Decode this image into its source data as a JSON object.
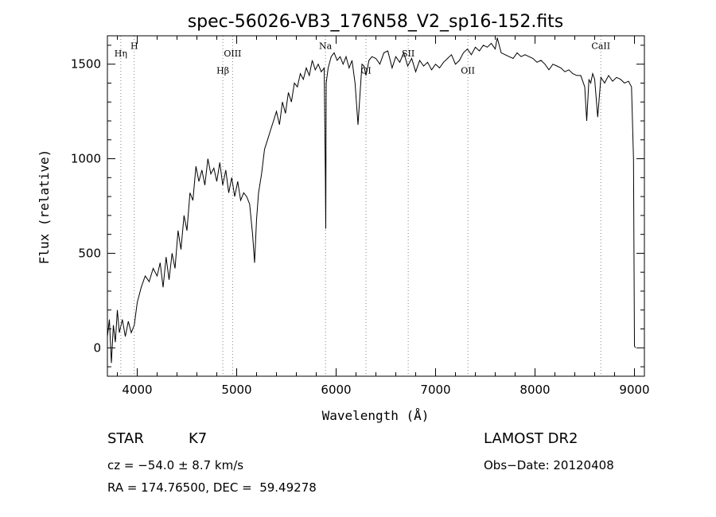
{
  "chart_data": {
    "type": "line",
    "title": "spec-56026-VB3_176N58_V2_sp16-152.fits",
    "xlabel": "Wavelength (Å)",
    "ylabel": "Flux (relative)",
    "xlim": [
      3700,
      9100
    ],
    "ylim": [
      -150,
      1650
    ],
    "x_ticks": [
      4000,
      5000,
      6000,
      7000,
      8000,
      9000
    ],
    "y_ticks": [
      0,
      500,
      1000,
      1500
    ],
    "grid": false,
    "series": [
      {
        "x": [
          3700,
          3720,
          3740,
          3760,
          3780,
          3800,
          3820,
          3850,
          3880,
          3910,
          3940,
          3970,
          4000,
          4040,
          4080,
          4120,
          4160,
          4200,
          4230,
          4260,
          4290,
          4320,
          4350,
          4380,
          4410,
          4440,
          4470,
          4500,
          4530,
          4560,
          4590,
          4620,
          4650,
          4680,
          4710,
          4740,
          4770,
          4800,
          4830,
          4860,
          4890,
          4920,
          4950,
          4980,
          5010,
          5040,
          5070,
          5100,
          5130,
          5160,
          5180,
          5200,
          5220,
          5250,
          5280,
          5310,
          5340,
          5370,
          5400,
          5430,
          5460,
          5490,
          5520,
          5550,
          5580,
          5610,
          5640,
          5670,
          5700,
          5730,
          5760,
          5790,
          5820,
          5850,
          5880,
          5892,
          5896,
          5900,
          5920,
          5950,
          5980,
          6010,
          6040,
          6070,
          6100,
          6130,
          6160,
          6190,
          6220,
          6260,
          6280,
          6300,
          6330,
          6360,
          6400,
          6440,
          6480,
          6520,
          6563,
          6600,
          6640,
          6680,
          6720,
          6760,
          6800,
          6840,
          6880,
          6920,
          6960,
          7000,
          7040,
          7080,
          7120,
          7160,
          7200,
          7240,
          7280,
          7320,
          7360,
          7400,
          7440,
          7480,
          7520,
          7560,
          7600,
          7620,
          7640,
          7660,
          7700,
          7740,
          7780,
          7820,
          7860,
          7900,
          7940,
          7980,
          8020,
          8060,
          8100,
          8140,
          8180,
          8220,
          8260,
          8300,
          8340,
          8380,
          8420,
          8460,
          8500,
          8520,
          8542,
          8560,
          8580,
          8600,
          8630,
          8662,
          8700,
          8740,
          8780,
          8820,
          8860,
          8900,
          8940,
          8970,
          8990,
          9000,
          9010
        ],
        "y": [
          60,
          150,
          -80,
          120,
          30,
          200,
          80,
          150,
          60,
          140,
          80,
          120,
          240,
          320,
          380,
          350,
          420,
          380,
          450,
          320,
          480,
          360,
          500,
          420,
          620,
          520,
          700,
          620,
          820,
          780,
          960,
          880,
          940,
          860,
          1000,
          920,
          950,
          880,
          980,
          860,
          940,
          820,
          900,
          800,
          880,
          780,
          820,
          800,
          760,
          600,
          450,
          680,
          820,
          920,
          1050,
          1100,
          1150,
          1200,
          1250,
          1180,
          1300,
          1240,
          1350,
          1300,
          1400,
          1380,
          1450,
          1420,
          1480,
          1440,
          1520,
          1470,
          1500,
          1460,
          1480,
          900,
          630,
          1400,
          1480,
          1540,
          1560,
          1520,
          1540,
          1500,
          1540,
          1480,
          1520,
          1400,
          1180,
          1500,
          1490,
          1440,
          1520,
          1540,
          1530,
          1500,
          1560,
          1570,
          1480,
          1540,
          1510,
          1560,
          1490,
          1530,
          1460,
          1520,
          1490,
          1510,
          1470,
          1500,
          1480,
          1510,
          1530,
          1550,
          1500,
          1520,
          1560,
          1580,
          1550,
          1590,
          1570,
          1600,
          1590,
          1610,
          1580,
          1640,
          1600,
          1560,
          1550,
          1540,
          1530,
          1560,
          1540,
          1550,
          1540,
          1530,
          1510,
          1520,
          1500,
          1470,
          1500,
          1490,
          1480,
          1460,
          1470,
          1450,
          1440,
          1440,
          1380,
          1200,
          1420,
          1400,
          1450,
          1420,
          1220,
          1430,
          1400,
          1440,
          1410,
          1430,
          1420,
          1400,
          1410,
          1380,
          1000,
          10,
          0
        ]
      }
    ],
    "line_markers": [
      {
        "label": "Hη",
        "x": 3835,
        "color": "#808080",
        "label_y": 1540
      },
      {
        "label": "H",
        "x": 3970,
        "color": "#808080",
        "label_y": 1580
      },
      {
        "label": "Hβ",
        "x": 4861,
        "color": "#808080",
        "label_y": 1450
      },
      {
        "label": "OIII",
        "x": 4959,
        "color": "#808080",
        "label_y": 1540
      },
      {
        "label": "Na",
        "x": 5893,
        "color": "#808080",
        "label_y": 1580
      },
      {
        "label": "OI",
        "x": 6300,
        "color": "#808080",
        "label_y": 1450
      },
      {
        "label": "SII",
        "x": 6725,
        "color": "#808080",
        "label_y": 1540
      },
      {
        "label": "OII",
        "x": 7325,
        "color": "#808080",
        "label_y": 1450
      },
      {
        "label": "CaII",
        "x": 8662,
        "color": "#808080",
        "label_y": 1580
      }
    ]
  },
  "info": {
    "object_class": "STAR",
    "subclass": "K7",
    "redshift": "cz = −54.0 ± 8.7 km/s",
    "coords": "RA = 174.76500, DEC =  59.49278",
    "survey": "LAMOST DR2",
    "obs_date": "Obs−Date: 20120408"
  }
}
